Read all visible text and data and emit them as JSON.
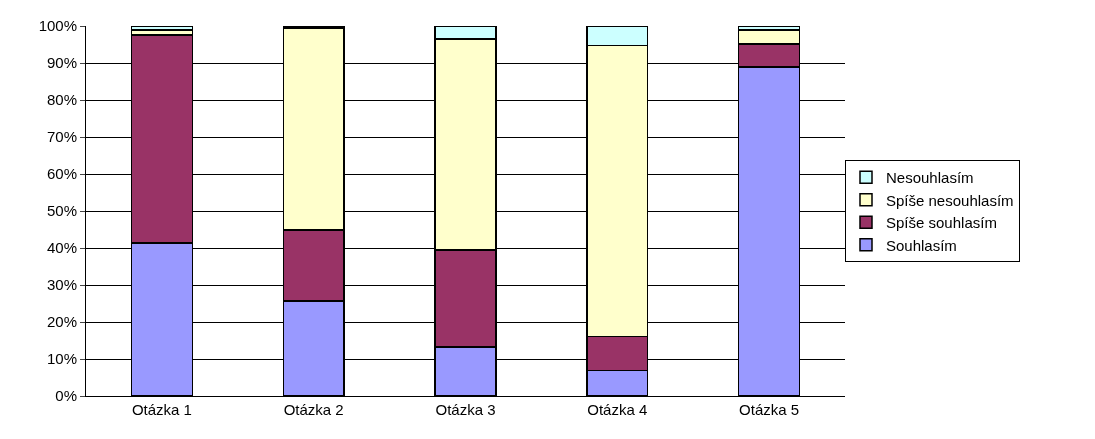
{
  "chart_data": {
    "type": "bar",
    "stacked": true,
    "categories": [
      "Otázka 1",
      "Otázka 2",
      "Otázka 3",
      "Otázka 4",
      "Otázka 5"
    ],
    "series": [
      {
        "name": "Souhlasím",
        "color": "#9999ff",
        "values": [
          41.4,
          25.7,
          13.2,
          6.9,
          88.9
        ]
      },
      {
        "name": "Spíše souhlasím",
        "color": "#993366",
        "values": [
          56.2,
          19.1,
          26.3,
          9.2,
          6.2
        ]
      },
      {
        "name": "Spíše nesouhlasím",
        "color": "#ffffcc",
        "values": [
          1.3,
          54.7,
          57.0,
          78.6,
          3.8
        ]
      },
      {
        "name": "Nesouhlasím",
        "color": "#ccffff",
        "values": [
          1.1,
          0.5,
          3.5,
          5.3,
          1.1
        ]
      }
    ],
    "ylim": [
      0,
      100
    ],
    "yticks": [
      {
        "value": 0,
        "label": "0%"
      },
      {
        "value": 10,
        "label": "10%"
      },
      {
        "value": 20,
        "label": "20%"
      },
      {
        "value": 30,
        "label": "30%"
      },
      {
        "value": 40,
        "label": "40%"
      },
      {
        "value": 50,
        "label": "50%"
      },
      {
        "value": 60,
        "label": "60%"
      },
      {
        "value": 70,
        "label": "70%"
      },
      {
        "value": 80,
        "label": "80%"
      },
      {
        "value": 90,
        "label": "90%"
      },
      {
        "value": 100,
        "label": "100%"
      }
    ],
    "grid": "y",
    "legend": "right"
  }
}
